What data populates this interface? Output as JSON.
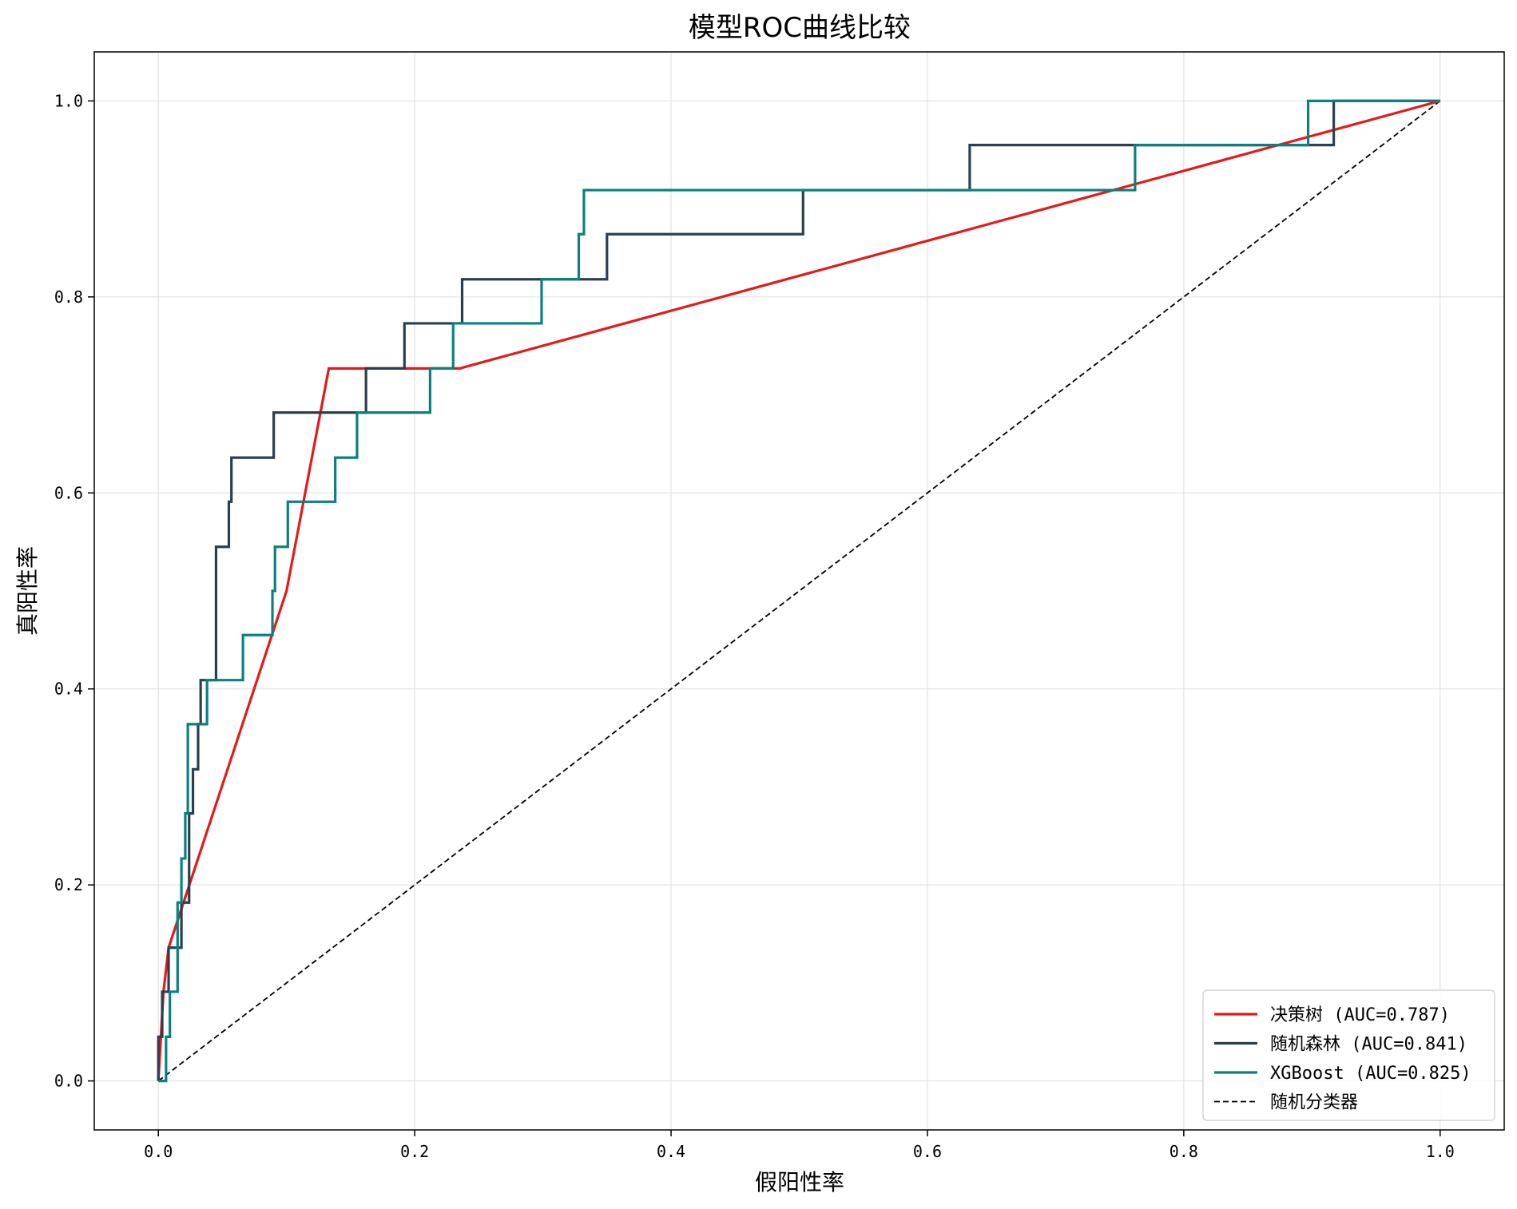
{
  "chart_data": {
    "type": "line",
    "title": "模型ROC曲线比较",
    "xlabel": "假阳性率",
    "ylabel": "真阳性率",
    "xlim": [
      -0.05,
      1.05
    ],
    "ylim": [
      -0.05,
      1.05
    ],
    "x_ticks": [
      "0.0",
      "0.2",
      "0.4",
      "0.6",
      "0.8",
      "1.0"
    ],
    "y_ticks": [
      "0.0",
      "0.2",
      "0.4",
      "0.6",
      "0.8",
      "1.0"
    ],
    "grid": true,
    "legend_position": "bottom-right",
    "series": [
      {
        "name": "决策树 (AUC=0.787)",
        "color": "#e31a1c",
        "dash": "solid",
        "points": [
          [
            0,
            0
          ],
          [
            0.004,
            0.091
          ],
          [
            0.008,
            0.136
          ],
          [
            0.1,
            0.5
          ],
          [
            0.133,
            0.727
          ],
          [
            0.235,
            0.727
          ],
          [
            1.0,
            1.0
          ]
        ]
      },
      {
        "name": "随机森林 (AUC=0.841)",
        "color": "#2c3e50",
        "dash": "solid",
        "points": [
          [
            0,
            0
          ],
          [
            0,
            0.045
          ],
          [
            0.003,
            0.045
          ],
          [
            0.003,
            0.091
          ],
          [
            0.008,
            0.091
          ],
          [
            0.008,
            0.136
          ],
          [
            0.018,
            0.136
          ],
          [
            0.018,
            0.182
          ],
          [
            0.024,
            0.182
          ],
          [
            0.024,
            0.273
          ],
          [
            0.027,
            0.273
          ],
          [
            0.027,
            0.318
          ],
          [
            0.031,
            0.318
          ],
          [
            0.031,
            0.364
          ],
          [
            0.033,
            0.364
          ],
          [
            0.033,
            0.409
          ],
          [
            0.045,
            0.409
          ],
          [
            0.045,
            0.545
          ],
          [
            0.055,
            0.545
          ],
          [
            0.055,
            0.591
          ],
          [
            0.057,
            0.591
          ],
          [
            0.057,
            0.636
          ],
          [
            0.09,
            0.636
          ],
          [
            0.09,
            0.682
          ],
          [
            0.162,
            0.682
          ],
          [
            0.162,
            0.727
          ],
          [
            0.192,
            0.727
          ],
          [
            0.192,
            0.773
          ],
          [
            0.237,
            0.773
          ],
          [
            0.237,
            0.818
          ],
          [
            0.35,
            0.818
          ],
          [
            0.35,
            0.864
          ],
          [
            0.503,
            0.864
          ],
          [
            0.503,
            0.909
          ],
          [
            0.633,
            0.909
          ],
          [
            0.633,
            0.955
          ],
          [
            0.917,
            0.955
          ],
          [
            0.917,
            1.0
          ],
          [
            1.0,
            1.0
          ]
        ]
      },
      {
        "name": "XGBoost (AUC=0.825)",
        "color": "#0b8080",
        "dash": "solid",
        "points": [
          [
            0,
            0
          ],
          [
            0.006,
            0
          ],
          [
            0.006,
            0.045
          ],
          [
            0.009,
            0.045
          ],
          [
            0.009,
            0.091
          ],
          [
            0.015,
            0.091
          ],
          [
            0.015,
            0.182
          ],
          [
            0.018,
            0.182
          ],
          [
            0.018,
            0.227
          ],
          [
            0.021,
            0.227
          ],
          [
            0.021,
            0.273
          ],
          [
            0.023,
            0.273
          ],
          [
            0.023,
            0.364
          ],
          [
            0.038,
            0.364
          ],
          [
            0.038,
            0.409
          ],
          [
            0.066,
            0.409
          ],
          [
            0.066,
            0.455
          ],
          [
            0.089,
            0.455
          ],
          [
            0.089,
            0.5
          ],
          [
            0.091,
            0.5
          ],
          [
            0.091,
            0.545
          ],
          [
            0.101,
            0.545
          ],
          [
            0.101,
            0.591
          ],
          [
            0.138,
            0.591
          ],
          [
            0.138,
            0.636
          ],
          [
            0.155,
            0.636
          ],
          [
            0.155,
            0.682
          ],
          [
            0.212,
            0.682
          ],
          [
            0.212,
            0.727
          ],
          [
            0.23,
            0.727
          ],
          [
            0.23,
            0.773
          ],
          [
            0.299,
            0.773
          ],
          [
            0.299,
            0.818
          ],
          [
            0.328,
            0.818
          ],
          [
            0.328,
            0.864
          ],
          [
            0.332,
            0.864
          ],
          [
            0.332,
            0.909
          ],
          [
            0.762,
            0.909
          ],
          [
            0.762,
            0.955
          ],
          [
            0.897,
            0.955
          ],
          [
            0.897,
            1.0
          ],
          [
            1.0,
            1.0
          ]
        ]
      },
      {
        "name": "随机分类器",
        "color": "#000000",
        "dash": "dashed",
        "points": [
          [
            0,
            0
          ],
          [
            1,
            1
          ]
        ]
      }
    ]
  }
}
